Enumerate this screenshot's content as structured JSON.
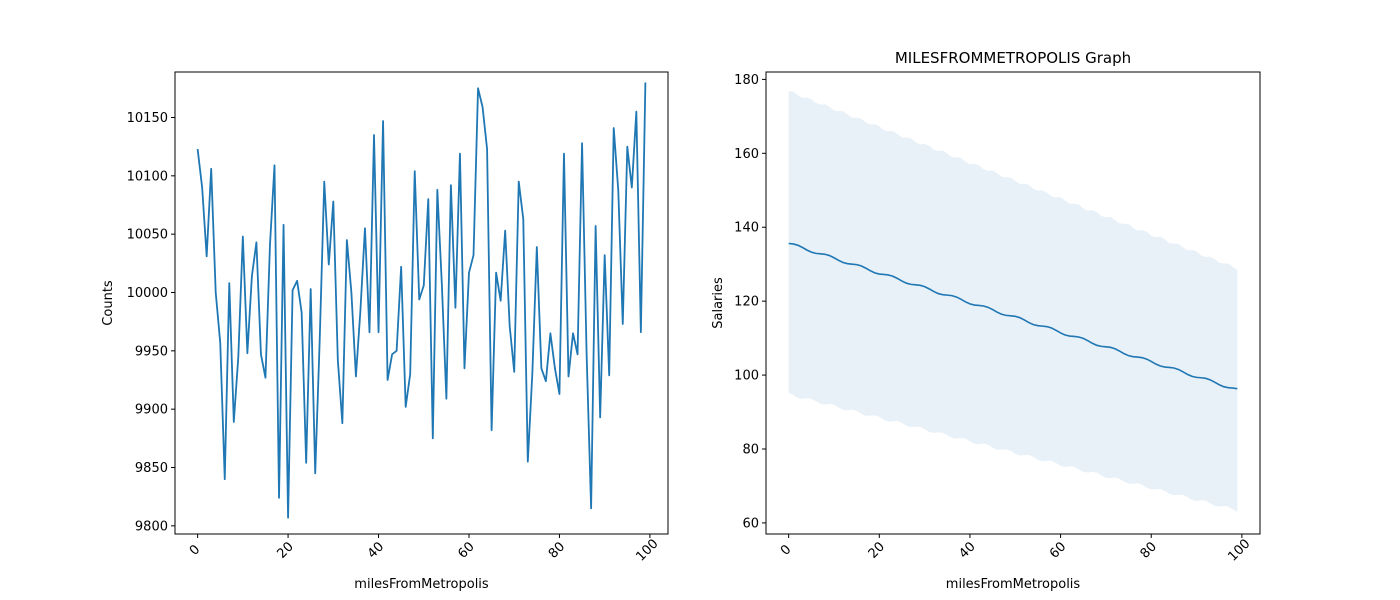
{
  "chart_data": [
    {
      "type": "line",
      "title": "",
      "xlabel": "milesFromMetropolis",
      "ylabel": "Counts",
      "xlim": [
        -5,
        104
      ],
      "ylim": [
        9793,
        10189
      ],
      "xticks": [
        0,
        20,
        40,
        60,
        80,
        100
      ],
      "yticks": [
        9800,
        9850,
        9900,
        9950,
        10000,
        10050,
        10100,
        10150
      ],
      "line_color": "#1f77b4",
      "x": [
        0,
        1,
        2,
        3,
        4,
        5,
        6,
        7,
        8,
        9,
        10,
        11,
        12,
        13,
        14,
        15,
        16,
        17,
        18,
        19,
        20,
        21,
        22,
        23,
        24,
        25,
        26,
        27,
        28,
        29,
        30,
        31,
        32,
        33,
        34,
        35,
        36,
        37,
        38,
        39,
        40,
        41,
        42,
        43,
        44,
        45,
        46,
        47,
        48,
        49,
        50,
        51,
        52,
        53,
        54,
        55,
        56,
        57,
        58,
        59,
        60,
        61,
        62,
        63,
        64,
        65,
        66,
        67,
        68,
        69,
        70,
        71,
        72,
        73,
        74,
        75,
        76,
        77,
        78,
        79,
        80,
        81,
        82,
        83,
        84,
        85,
        86,
        87,
        88,
        89,
        90,
        91,
        92,
        93,
        94,
        95,
        96,
        97,
        98,
        99
      ],
      "y": [
        10123,
        10090,
        10031,
        10106,
        10000,
        9957,
        9840,
        10008,
        9889,
        9945,
        10048,
        9948,
        10014,
        10043,
        9947,
        9927,
        10041,
        10109,
        9824,
        10058,
        9807,
        10002,
        10010,
        9983,
        9854,
        10003,
        9845,
        9960,
        10095,
        10024,
        10078,
        9942,
        9888,
        10045,
        10000,
        9928,
        9985,
        10055,
        9966,
        10135,
        9966,
        10147,
        9925,
        9947,
        9950,
        10022,
        9902,
        9930,
        10104,
        9994,
        10006,
        10080,
        9875,
        10088,
        10007,
        9909,
        10092,
        9987,
        10119,
        9935,
        10017,
        10032,
        10175,
        10159,
        10123,
        9882,
        10017,
        9993,
        10053,
        9971,
        9932,
        10095,
        10063,
        9855,
        9930,
        10039,
        9935,
        9924,
        9965,
        9935,
        9913,
        10119,
        9928,
        9965,
        9947,
        10128,
        9948,
        9815,
        10057,
        9893,
        10032,
        9929,
        10141,
        10088,
        9973,
        10125,
        10090,
        10155,
        9966,
        10180
      ]
    },
    {
      "type": "line",
      "title": "MILESFROMMETROPOLIS Graph",
      "xlabel": "milesFromMetropolis",
      "ylabel": "Salaries",
      "xlim": [
        -5,
        104
      ],
      "ylim": [
        57,
        182
      ],
      "xticks": [
        0,
        20,
        40,
        60,
        80,
        100
      ],
      "yticks": [
        60,
        80,
        100,
        120,
        140,
        160,
        180
      ],
      "line_color": "#1f77b4",
      "band_color": "#e8f0f8",
      "x_start": 0,
      "x_end": 99,
      "mean_start": 135.6,
      "mean_end": 96.0,
      "upper_start": 176.8,
      "upper_end": 128.8,
      "lower_start": 94.8,
      "lower_end": 63.4
    }
  ]
}
